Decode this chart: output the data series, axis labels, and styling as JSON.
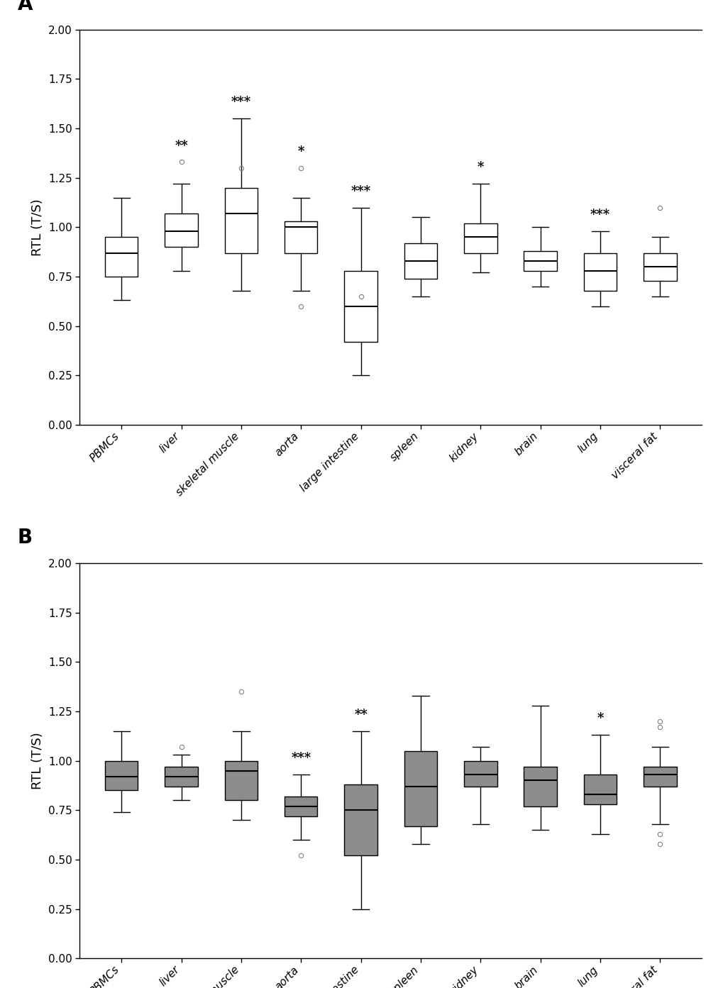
{
  "categories": [
    "PBMCs",
    "liver",
    "skeletal muscle",
    "aorta",
    "large intestine",
    "spleen",
    "kidney",
    "brain",
    "lung",
    "visceral fat"
  ],
  "panel_A": {
    "label": "A",
    "box_facecolor": "white",
    "significance": [
      "",
      "**",
      "***",
      "*",
      "***",
      "",
      "*",
      "",
      "***",
      ""
    ],
    "boxes": [
      {
        "q1": 0.75,
        "median": 0.87,
        "q3": 0.95,
        "whislo": 0.63,
        "whishi": 1.15,
        "fliers": []
      },
      {
        "q1": 0.9,
        "median": 0.98,
        "q3": 1.07,
        "whislo": 0.78,
        "whishi": 1.22,
        "fliers": [
          1.33
        ]
      },
      {
        "q1": 0.87,
        "median": 1.07,
        "q3": 1.2,
        "whislo": 0.68,
        "whishi": 1.55,
        "fliers": [
          1.3
        ]
      },
      {
        "q1": 0.87,
        "median": 1.0,
        "q3": 1.03,
        "whislo": 0.68,
        "whishi": 1.15,
        "fliers": [
          1.3,
          0.6
        ]
      },
      {
        "q1": 0.42,
        "median": 0.6,
        "q3": 0.78,
        "whislo": 0.25,
        "whishi": 1.1,
        "fliers": [
          0.65
        ]
      },
      {
        "q1": 0.74,
        "median": 0.83,
        "q3": 0.92,
        "whislo": 0.65,
        "whishi": 1.05,
        "fliers": []
      },
      {
        "q1": 0.87,
        "median": 0.95,
        "q3": 1.02,
        "whislo": 0.77,
        "whishi": 1.22,
        "fliers": []
      },
      {
        "q1": 0.78,
        "median": 0.83,
        "q3": 0.88,
        "whislo": 0.7,
        "whishi": 1.0,
        "fliers": []
      },
      {
        "q1": 0.68,
        "median": 0.78,
        "q3": 0.87,
        "whislo": 0.6,
        "whishi": 0.98,
        "fliers": []
      },
      {
        "q1": 0.73,
        "median": 0.8,
        "q3": 0.87,
        "whislo": 0.65,
        "whishi": 0.95,
        "fliers": [
          1.1
        ]
      }
    ]
  },
  "panel_B": {
    "label": "B",
    "box_facecolor": "#8c8c8c",
    "significance": [
      "",
      "",
      "",
      "***",
      "**",
      "",
      "",
      "",
      "*",
      ""
    ],
    "boxes": [
      {
        "q1": 0.85,
        "median": 0.92,
        "q3": 1.0,
        "whislo": 0.74,
        "whishi": 1.15,
        "fliers": []
      },
      {
        "q1": 0.87,
        "median": 0.92,
        "q3": 0.97,
        "whislo": 0.8,
        "whishi": 1.03,
        "fliers": [
          1.07
        ]
      },
      {
        "q1": 0.8,
        "median": 0.95,
        "q3": 1.0,
        "whislo": 0.7,
        "whishi": 1.15,
        "fliers": [
          1.35
        ]
      },
      {
        "q1": 0.72,
        "median": 0.77,
        "q3": 0.82,
        "whislo": 0.6,
        "whishi": 0.93,
        "fliers": [
          0.52
        ]
      },
      {
        "q1": 0.52,
        "median": 0.75,
        "q3": 0.88,
        "whislo": 0.25,
        "whishi": 1.15,
        "fliers": []
      },
      {
        "q1": 0.67,
        "median": 0.87,
        "q3": 1.05,
        "whislo": 0.58,
        "whishi": 1.33,
        "fliers": []
      },
      {
        "q1": 0.87,
        "median": 0.93,
        "q3": 1.0,
        "whislo": 0.68,
        "whishi": 1.07,
        "fliers": []
      },
      {
        "q1": 0.77,
        "median": 0.9,
        "q3": 0.97,
        "whislo": 0.65,
        "whishi": 1.28,
        "fliers": []
      },
      {
        "q1": 0.78,
        "median": 0.83,
        "q3": 0.93,
        "whislo": 0.63,
        "whishi": 1.13,
        "fliers": []
      },
      {
        "q1": 0.87,
        "median": 0.93,
        "q3": 0.97,
        "whislo": 0.68,
        "whishi": 1.07,
        "fliers": [
          0.58,
          0.63,
          1.17,
          1.2
        ]
      }
    ]
  },
  "ylabel": "RTL (T/S)",
  "ylim": [
    0.0,
    2.0
  ],
  "yticks": [
    0.0,
    0.25,
    0.5,
    0.75,
    1.0,
    1.25,
    1.5,
    1.75,
    2.0
  ],
  "sig_fontsize": 13,
  "label_fontsize": 14,
  "ylabel_fontsize": 13,
  "tick_fontsize": 11,
  "cat_fontsize": 11,
  "panel_label_fontsize": 20,
  "fig_width": 10.2,
  "fig_height": 13.93
}
